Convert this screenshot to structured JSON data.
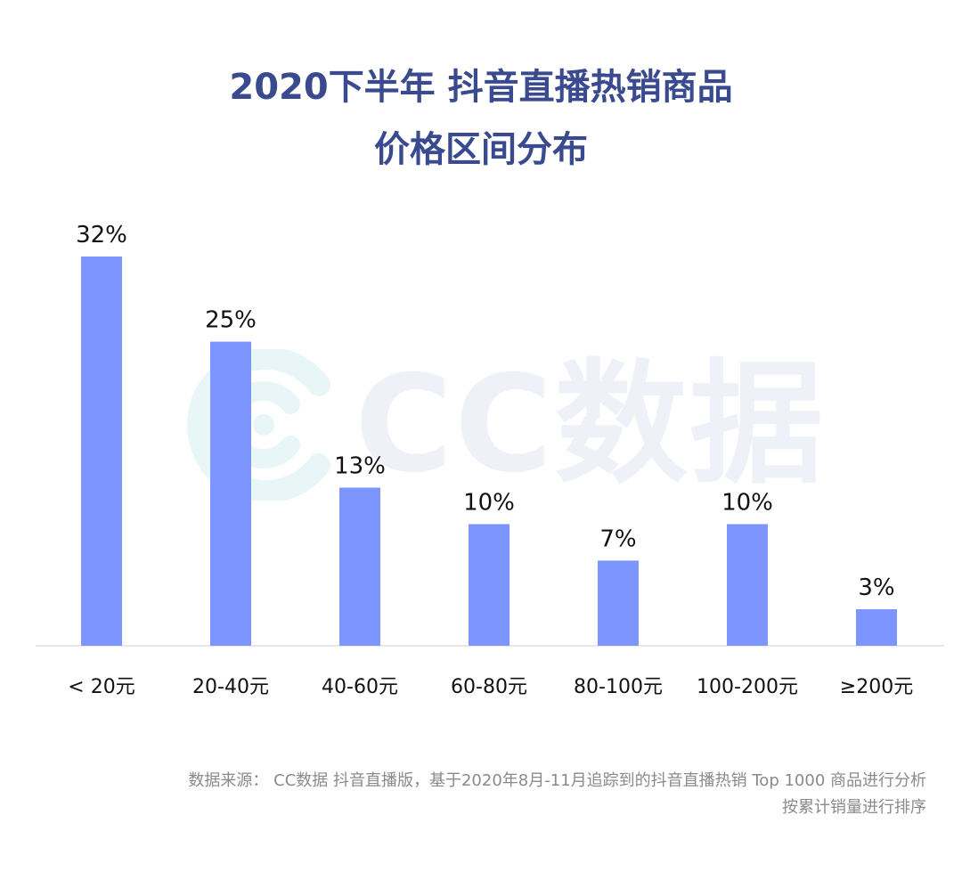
{
  "title": {
    "line1": "2020下半年 抖音直播热销商品",
    "line2": "价格区间分布"
  },
  "watermark": {
    "text": "CC数据"
  },
  "chart_data": {
    "type": "bar",
    "categories": [
      "< 20元",
      "20-40元",
      "40-60元",
      "60-80元",
      "80-100元",
      "100-200元",
      "≥200元"
    ],
    "values": [
      32,
      25,
      13,
      10,
      7,
      10,
      3
    ],
    "value_labels": [
      "32%",
      "25%",
      "13%",
      "10%",
      "7%",
      "10%",
      "3%"
    ],
    "unit": "%",
    "ylim": [
      0,
      32
    ],
    "bar_color": "#7d95ff",
    "grid": false,
    "legend": "none"
  },
  "source": {
    "line1": "数据来源： CC数据 抖音直播版，基于2020年8月-11月追踪到的抖音直播热销 Top 1000 商品进行分析",
    "line2": "按累计销量进行排序"
  },
  "colors": {
    "title": "#3a4a8e",
    "bar": "#7d95ff",
    "axis": "#e0e0e0",
    "source_text": "#8a8a8a",
    "watermark": "#eef1f8"
  }
}
